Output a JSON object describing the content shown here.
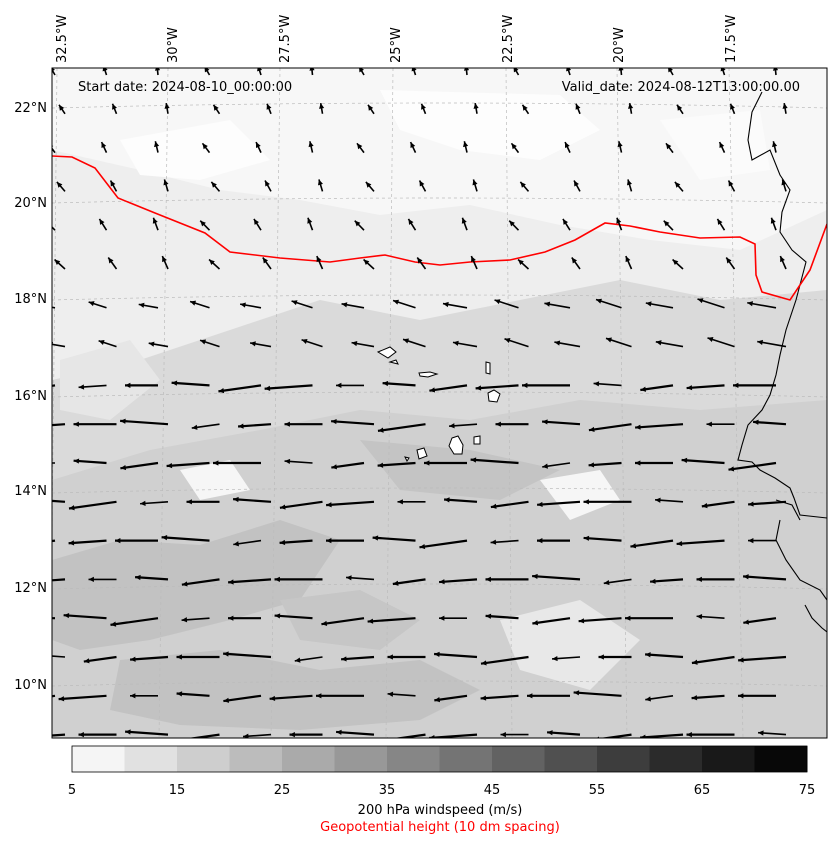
{
  "map": {
    "start_date": "Start date: 2024-08-10_00:00:00",
    "valid_date": "Valid_date: 2024-08-12T13:00:00.00",
    "lon_labels": [
      "32.5°W",
      "30°W",
      "27.5°W",
      "25°W",
      "22.5°W",
      "20°W",
      "17.5°W"
    ],
    "lat_labels": [
      "22°N",
      "20°N",
      "18°N",
      "16°N",
      "14°N",
      "12°N",
      "10°N"
    ],
    "contour_color": "#ff0000",
    "coast_color": "#000000",
    "arrow_color": "#000000"
  },
  "colorbar": {
    "ticks": [
      "5",
      "15",
      "25",
      "35",
      "45",
      "55",
      "65",
      "75"
    ],
    "colors": [
      "#f5f5f5",
      "#e1e1e1",
      "#cecece",
      "#bcbcbc",
      "#aaaaaa",
      "#989898",
      "#868686",
      "#747474",
      "#626262",
      "#505050",
      "#3d3d3d",
      "#2b2b2b",
      "#191919",
      "#080808"
    ],
    "label": "200 hPa windspeed (m/s)",
    "sublabel": "Geopotential height (10 dm spacing)",
    "sublabel_color": "#ff0000"
  }
}
